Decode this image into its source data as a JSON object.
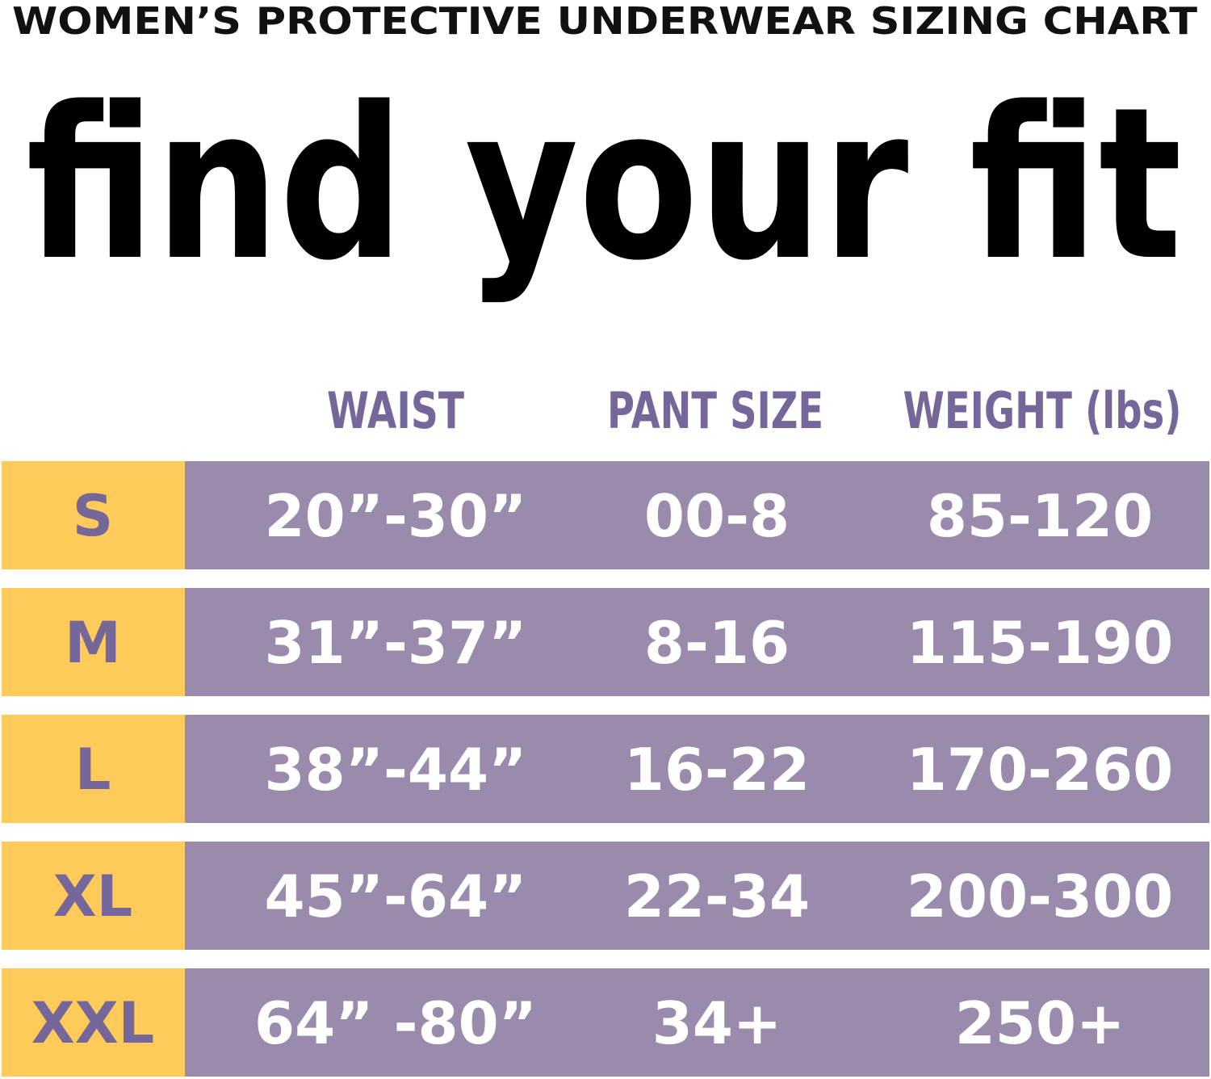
{
  "subtitle": "WOMEN’S PROTECTIVE UNDERWEAR SIZING CHART",
  "headline": "find your fit",
  "colors": {
    "size_cell": "#FECB5A",
    "value_cell": "#9A8BAC",
    "header_text": "#76679A",
    "value_text": "#FFFFFF"
  },
  "table": {
    "headers": [
      "WAIST",
      "PANT SIZE",
      "WEIGHT (lbs)"
    ],
    "rows": [
      {
        "size": "S",
        "waist": "20”-30”",
        "pant": "00-8",
        "weight": "85-120"
      },
      {
        "size": "M",
        "waist": "31”-37”",
        "pant": "8-16",
        "weight": "115-190"
      },
      {
        "size": "L",
        "waist": "38”-44”",
        "pant": "16-22",
        "weight": "170-260"
      },
      {
        "size": "XL",
        "waist": "45”-64”",
        "pant": "22-34",
        "weight": "200-300"
      },
      {
        "size": "XXL",
        "waist": "64” -80”",
        "pant": "34+",
        "weight": "250+"
      }
    ]
  }
}
